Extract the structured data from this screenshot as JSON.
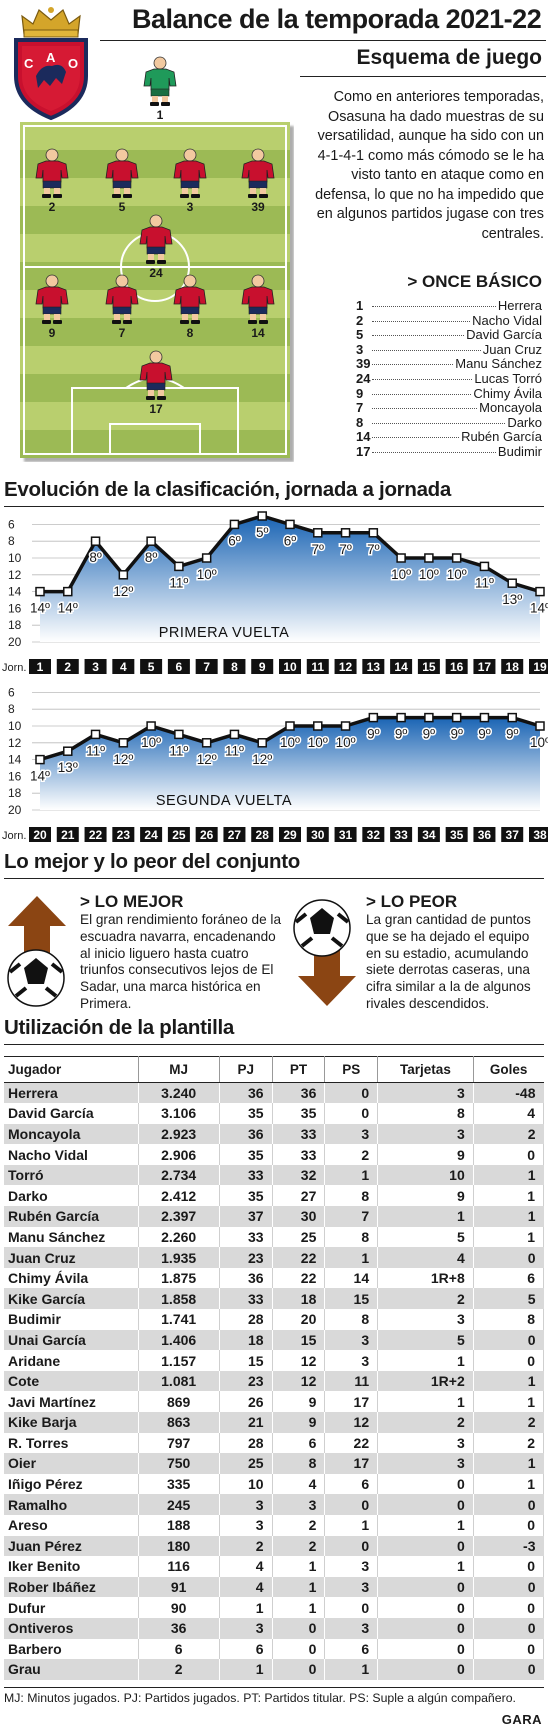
{
  "header": {
    "title": "Balance de la temporada 2021-22",
    "subtitle": "Esquema de juego",
    "crest_letters": [
      "C",
      "A",
      "O"
    ]
  },
  "formation": {
    "intro": "Como en anteriores temporadas, Osasuna ha dado muestras de su versatilidad, aunque ha sido con un 4-1-4-1 como más cómodo se le ha visto tanto en ataque como en defensa, lo que no ha impedido que en algunos partidos jugase con tres centrales.",
    "once_title": "> ONCE BÁSICO",
    "once": [
      {
        "num": "1",
        "name": "Herrera"
      },
      {
        "num": "2",
        "name": "Nacho Vidal"
      },
      {
        "num": "5",
        "name": "David García"
      },
      {
        "num": "3",
        "name": "Juan Cruz"
      },
      {
        "num": "39",
        "name": "Manu Sánchez"
      },
      {
        "num": "24",
        "name": "Lucas Torró"
      },
      {
        "num": "9",
        "name": "Chimy Ávila"
      },
      {
        "num": "7",
        "name": "Moncayola"
      },
      {
        "num": "8",
        "name": "Darko"
      },
      {
        "num": "14",
        "name": "Rubén García"
      },
      {
        "num": "17",
        "name": "Budimir"
      }
    ],
    "goalkeeper_number": "1",
    "rows": [
      [
        "2",
        "5",
        "3",
        "39"
      ],
      [
        "24"
      ],
      [
        "9",
        "7",
        "8",
        "14"
      ],
      [
        "17"
      ]
    ],
    "colors": {
      "pitch_dark": "#8fb04a",
      "pitch_light": "#b9cf6e",
      "shirt": "#c8102e",
      "shorts": "#1b2a5c",
      "gk_shirt": "#1f9a5a"
    }
  },
  "evolution": {
    "title": "Evolución de la clasificación, jornada a jornada",
    "jorn_label": "Jorn."
  },
  "chart_data": [
    {
      "type": "area",
      "label": "PRIMERA VUELTA",
      "y_ticks": [
        6,
        8,
        10,
        12,
        14,
        16,
        18,
        20
      ],
      "ylim": [
        5,
        20
      ],
      "y_inverted": true,
      "x": [
        1,
        2,
        3,
        4,
        5,
        6,
        7,
        8,
        9,
        10,
        11,
        12,
        13,
        14,
        15,
        16,
        17,
        18,
        19
      ],
      "values": [
        14,
        14,
        8,
        12,
        8,
        11,
        10,
        6,
        5,
        6,
        7,
        7,
        7,
        10,
        10,
        10,
        11,
        13,
        14
      ],
      "labels": [
        "14º",
        "14º",
        "8º",
        "12º",
        "8º",
        "11º",
        "10º",
        "6º",
        "5º",
        "6º",
        "7º",
        "7º",
        "7º",
        "10º",
        "10º",
        "10º",
        "11º",
        "13º",
        "14º"
      ],
      "colors": {
        "fill_top": "#1a64b4",
        "fill_bottom": "#ffffff",
        "line": "#111111"
      }
    },
    {
      "type": "area",
      "label": "SEGUNDA VUELTA",
      "y_ticks": [
        6,
        8,
        10,
        12,
        14,
        16,
        18,
        20
      ],
      "ylim": [
        5,
        20
      ],
      "y_inverted": true,
      "x": [
        20,
        21,
        22,
        23,
        24,
        25,
        26,
        27,
        28,
        29,
        30,
        31,
        32,
        33,
        34,
        35,
        36,
        37,
        38
      ],
      "values": [
        14,
        13,
        11,
        12,
        10,
        11,
        12,
        11,
        12,
        10,
        10,
        10,
        9,
        9,
        9,
        9,
        9,
        9,
        10
      ],
      "labels": [
        "14º",
        "13º",
        "11º",
        "12º",
        "10º",
        "11º",
        "12º",
        "11º",
        "12º",
        "10º",
        "10º",
        "10º",
        "9º",
        "9º",
        "9º",
        "9º",
        "9º",
        "9º",
        "10º"
      ],
      "colors": {
        "fill_top": "#1a64b4",
        "fill_bottom": "#ffffff",
        "line": "#111111"
      }
    },
    {
      "type": "table",
      "title": "Utilización de la plantilla",
      "columns": [
        "Jugador",
        "MJ",
        "PJ",
        "PT",
        "PS",
        "Tarjetas",
        "Goles"
      ],
      "rows": [
        [
          "Herrera",
          "3.240",
          "36",
          "36",
          "0",
          "3",
          "-48"
        ],
        [
          "David García",
          "3.106",
          "35",
          "35",
          "0",
          "8",
          "4"
        ],
        [
          "Moncayola",
          "2.923",
          "36",
          "33",
          "3",
          "3",
          "2"
        ],
        [
          "Nacho Vidal",
          "2.906",
          "35",
          "33",
          "2",
          "9",
          "0"
        ],
        [
          "Torró",
          "2.734",
          "33",
          "32",
          "1",
          "10",
          "1"
        ],
        [
          "Darko",
          "2.412",
          "35",
          "27",
          "8",
          "9",
          "1"
        ],
        [
          "Rubén García",
          "2.397",
          "37",
          "30",
          "7",
          "1",
          "1"
        ],
        [
          "Manu Sánchez",
          "2.260",
          "33",
          "25",
          "8",
          "5",
          "1"
        ],
        [
          "Juan Cruz",
          "1.935",
          "23",
          "22",
          "1",
          "4",
          "0"
        ],
        [
          "Chimy Ávila",
          "1.875",
          "36",
          "22",
          "14",
          "1R+8",
          "6"
        ],
        [
          "Kike García",
          "1.858",
          "33",
          "18",
          "15",
          "2",
          "5"
        ],
        [
          "Budimir",
          "1.741",
          "28",
          "20",
          "8",
          "3",
          "8"
        ],
        [
          "Unai García",
          "1.406",
          "18",
          "15",
          "3",
          "5",
          "0"
        ],
        [
          "Aridane",
          "1.157",
          "15",
          "12",
          "3",
          "1",
          "0"
        ],
        [
          "Cote",
          "1.081",
          "23",
          "12",
          "11",
          "1R+2",
          "1"
        ],
        [
          "Javi Martínez",
          "869",
          "26",
          "9",
          "17",
          "1",
          "1"
        ],
        [
          "Kike Barja",
          "863",
          "21",
          "9",
          "12",
          "2",
          "2"
        ],
        [
          "R. Torres",
          "797",
          "28",
          "6",
          "22",
          "3",
          "2"
        ],
        [
          "Oier",
          "750",
          "25",
          "8",
          "17",
          "3",
          "1"
        ],
        [
          "Iñigo Pérez",
          "335",
          "10",
          "4",
          "6",
          "0",
          "1"
        ],
        [
          "Ramalho",
          "245",
          "3",
          "3",
          "0",
          "0",
          "0"
        ],
        [
          "Areso",
          "188",
          "3",
          "2",
          "1",
          "1",
          "0"
        ],
        [
          "Juan Pérez",
          "180",
          "2",
          "2",
          "0",
          "0",
          "-3"
        ],
        [
          "Iker Benito",
          "116",
          "4",
          "1",
          "3",
          "1",
          "0"
        ],
        [
          "Rober Ibáñez",
          "91",
          "4",
          "1",
          "3",
          "0",
          "0"
        ],
        [
          "Dufur",
          "90",
          "1",
          "1",
          "0",
          "0",
          "0"
        ],
        [
          "Ontiveros",
          "36",
          "3",
          "0",
          "3",
          "0",
          "0"
        ],
        [
          "Barbero",
          "6",
          "6",
          "0",
          "6",
          "0",
          "0"
        ],
        [
          "Grau",
          "2",
          "1",
          "0",
          "1",
          "0",
          "0"
        ]
      ]
    }
  ],
  "best_worst": {
    "title": "Lo mejor y lo peor del conjunto",
    "best_head": "> LO MEJOR",
    "best_text": "El gran rendimiento foráneo de la escuadra navarra, encadenando al inicio liguero hasta cuatro triunfos consecutivos lejos de El Sadar, una marca histórica en Primera.",
    "worst_head": "> LO PEOR",
    "worst_text": "La gran cantidad de puntos que se ha dejado el equipo en su estadio, acumulando siete derrotas caseras, una cifra similar a la de algunos rivales descendidos.",
    "arrow_color": "#8b4513"
  },
  "footnote": "MJ: Minutos jugados. PJ: Partidos jugados. PT: Partidos titular. PS: Suple a algún compañero.",
  "brand": "GARA"
}
